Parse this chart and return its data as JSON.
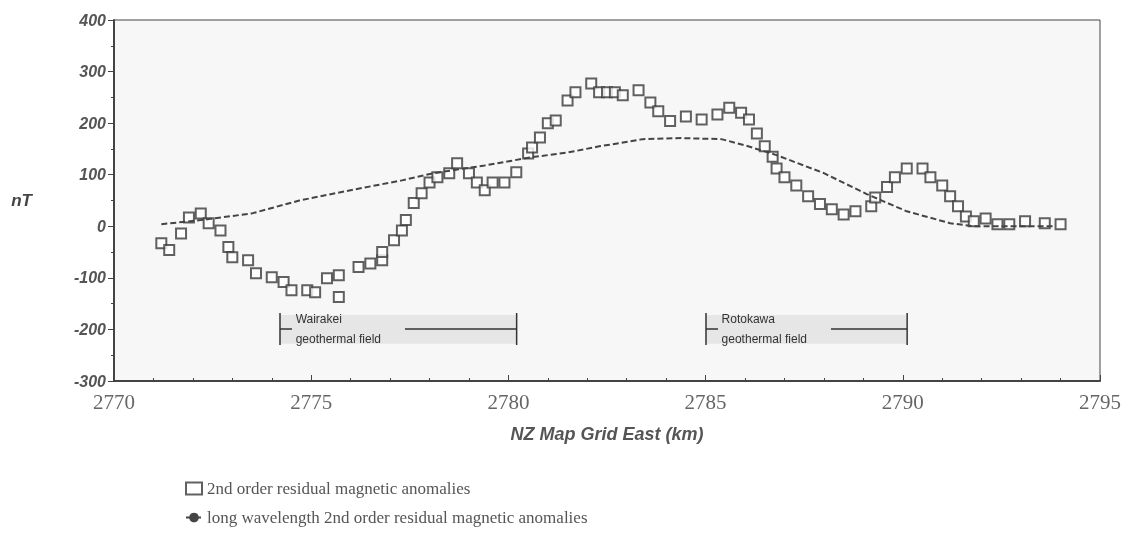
{
  "chart_data": {
    "type": "scatter",
    "xlabel": "NZ Map Grid East (km)",
    "ylabel": "nT",
    "xlim": [
      2770,
      2795
    ],
    "xticks": [
      2770,
      2775,
      2780,
      2785,
      2790,
      2795
    ],
    "ylim": [
      -300,
      400
    ],
    "yticks": [
      -300,
      -200,
      -100,
      0,
      100,
      200,
      300,
      400
    ],
    "grid": false,
    "legend": "bottom",
    "series": [
      {
        "name": "2nd order residual magnetic anomalies",
        "marker": "square",
        "color": "#3a3a3a",
        "x": [
          2771.2,
          2771.4,
          2771.7,
          2771.9,
          2772.2,
          2772.4,
          2772.7,
          2772.9,
          2773.0,
          2773.4,
          2773.6,
          2774.0,
          2774.3,
          2774.5,
          2774.9,
          2775.1,
          2775.4,
          2775.7,
          2775.7,
          2776.2,
          2776.5,
          2776.8,
          2776.8,
          2777.1,
          2777.3,
          2777.4,
          2777.6,
          2777.8,
          2778.0,
          2778.2,
          2778.5,
          2778.7,
          2779.0,
          2779.2,
          2779.4,
          2779.6,
          2779.9,
          2780.2,
          2780.5,
          2780.6,
          2780.8,
          2781.0,
          2781.2,
          2781.5,
          2781.7,
          2782.1,
          2782.3,
          2782.5,
          2782.7,
          2782.9,
          2783.3,
          2783.6,
          2783.8,
          2784.1,
          2784.5,
          2784.9,
          2785.3,
          2785.6,
          2785.9,
          2786.1,
          2786.3,
          2786.5,
          2786.7,
          2786.8,
          2787.0,
          2787.3,
          2787.6,
          2787.9,
          2788.2,
          2788.5,
          2788.8,
          2789.2,
          2789.3,
          2789.6,
          2789.8,
          2790.1,
          2790.5,
          2790.7,
          2791.0,
          2791.2,
          2791.4,
          2791.6,
          2791.8,
          2792.1,
          2792.4,
          2792.7,
          2793.1,
          2793.6,
          2794.0
        ],
        "values": [
          -33,
          -46,
          -14,
          17,
          25,
          6,
          -8,
          -40,
          -60,
          -66,
          -91,
          -99,
          -108,
          -124,
          -124,
          -128,
          -101,
          -137,
          -95,
          -79,
          -72,
          -66,
          -50,
          -27,
          -8,
          12,
          45,
          64,
          85,
          95,
          103,
          122,
          103,
          85,
          70,
          85,
          85,
          105,
          141,
          153,
          172,
          200,
          205,
          244,
          260,
          277,
          260,
          260,
          260,
          254,
          264,
          240,
          223,
          204,
          213,
          207,
          217,
          230,
          220,
          207,
          180,
          155,
          135,
          112,
          95,
          79,
          58,
          43,
          33,
          23,
          29,
          39,
          56,
          76,
          95,
          112,
          112,
          95,
          79,
          58,
          39,
          19,
          10,
          15,
          4,
          4,
          10,
          6,
          4
        ]
      },
      {
        "name": "long wavelength 2nd order residual magnetic anomalies",
        "type": "line",
        "marker": "none",
        "line_style": "dashed",
        "color": "#444444",
        "x": [
          2771.2,
          2772.2,
          2773.5,
          2774.7,
          2776.0,
          2777.3,
          2778.1,
          2779.4,
          2780.6,
          2781.5,
          2782.3,
          2782.8,
          2783.4,
          2784.4,
          2785.4,
          2786.0,
          2786.8,
          2788.0,
          2789.1,
          2790.1,
          2791.2,
          2791.8,
          2793.8
        ],
        "values": [
          4,
          12,
          25,
          50,
          70,
          89,
          103,
          118,
          134,
          143,
          155,
          161,
          169,
          171,
          169,
          157,
          138,
          103,
          62,
          29,
          6,
          0,
          0
        ]
      }
    ],
    "bands": [
      {
        "axis": "x",
        "from": 2774.2,
        "to": 2780.2,
        "label": "Wairakei\ngeothermal field",
        "color": "#e6e6e6"
      },
      {
        "axis": "x",
        "from": 2785.0,
        "to": 2790.1,
        "label": "Rotokawa\ngeothermal field",
        "color": "#e6e6e6"
      }
    ]
  }
}
